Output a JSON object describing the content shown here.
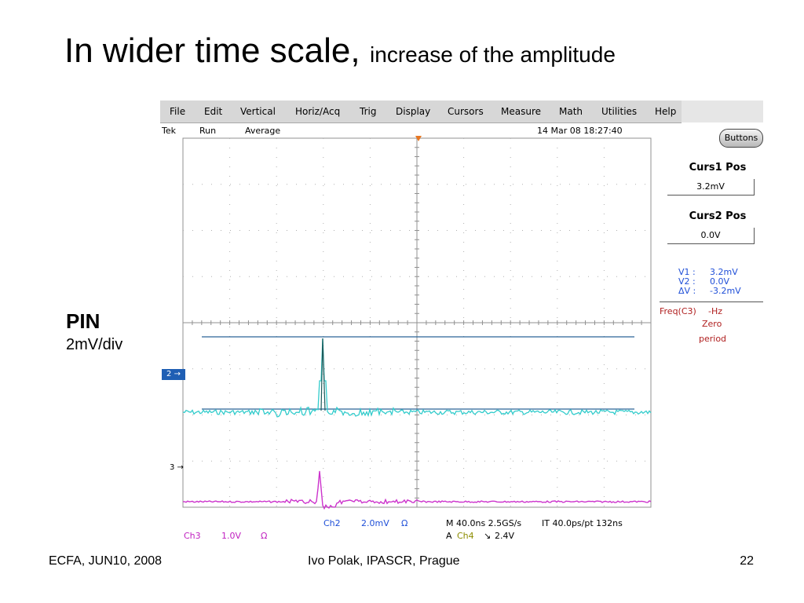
{
  "slide": {
    "title_main": "In wider time scale,",
    "title_sub": "increase of the amplitude",
    "pin_label": "PIN",
    "pin_scale": "2mV/div",
    "footer_left": "ECFA, JUN10, 2008",
    "footer_center": "Ivo Polak, IPASCR, Prague",
    "footer_right": "22"
  },
  "scope": {
    "menu": [
      "File",
      "Edit",
      "Vertical",
      "Horiz/Acq",
      "Trig",
      "Display",
      "Cursors",
      "Measure",
      "Math",
      "Utilities",
      "Help"
    ],
    "status": {
      "brand": "Tek",
      "mode": "Run",
      "acq": "Average",
      "datetime": "14 Mar 08 18:27:40"
    },
    "buttons_label": "Buttons",
    "curs1_title": "Curs1 Pos",
    "curs1_value": "3.2mV",
    "curs2_title": "Curs2 Pos",
    "curs2_value": "0.0V",
    "readouts": [
      {
        "key": "V1 :",
        "value": "3.2mV"
      },
      {
        "key": "V2 :",
        "value": "0.0V"
      },
      {
        "key": "ΔV :",
        "value": "-3.2mV"
      }
    ],
    "freq_label": "Freq(C3)",
    "freq_value": "-Hz",
    "freq_note1": "Zero",
    "freq_note2": "period",
    "ch2_marker": "2",
    "ch3_marker": "3",
    "bottom": {
      "ch2_name": "Ch2",
      "ch2_scale": "2.0mV",
      "ch2_unit": "Ω",
      "timebase": "M 40.0ns 2.5GS/s",
      "it": "IT 40.0ps/pt 132ns",
      "ch3_name": "Ch3",
      "ch3_scale": "1.0V",
      "ch3_unit": "Ω",
      "trig_a": "A",
      "trig_src": "Ch4",
      "trig_slope": "↘",
      "trig_level": "2.4V"
    },
    "colors": {
      "ch2": "#33cccc",
      "ch3": "#cc33cc",
      "cursor": "#2a6496",
      "grid": "#b0b0b0",
      "trigger_marker": "#e87722"
    }
  }
}
